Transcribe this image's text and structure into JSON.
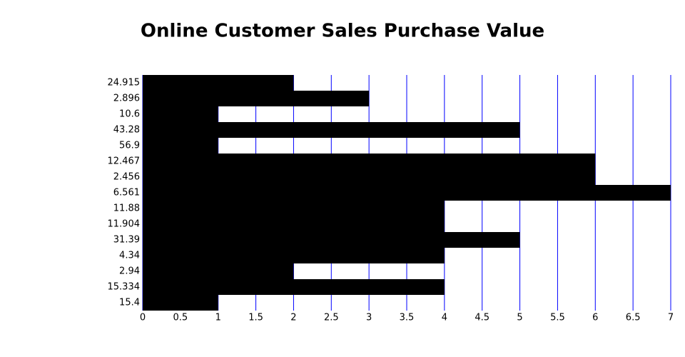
{
  "chart_data": {
    "type": "bar",
    "orientation": "horizontal",
    "title": "Online Customer Sales Purchase Value",
    "categories": [
      "24.915",
      "2.896",
      "10.6",
      "43.28",
      "56.9",
      "12.467",
      "2.456",
      "6.561",
      "11.88",
      "11.904",
      "31.39",
      "4.34",
      "2.94",
      "15.334",
      "15.4"
    ],
    "values": [
      2,
      3,
      1,
      5,
      1,
      6,
      6,
      7,
      4,
      4,
      5,
      4,
      2,
      4,
      1
    ],
    "color": "#000000",
    "xlim": [
      0,
      7
    ],
    "xticks": [
      0,
      0.5,
      1,
      1.5,
      2,
      2.5,
      3,
      3.5,
      4,
      4.5,
      5,
      5.5,
      6,
      6.5,
      7
    ],
    "grid": true,
    "grid_color": "#0000ff"
  }
}
